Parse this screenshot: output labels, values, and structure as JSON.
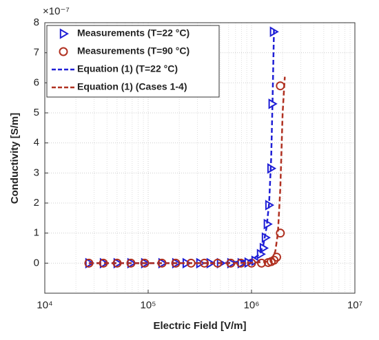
{
  "chart_data": {
    "type": "scatter",
    "y_multiplier": "×10⁻⁷",
    "xlabel": "Electric Field [V/m]",
    "ylabel": "Conductivity [S/m]",
    "xscale": "log",
    "xlim": [
      10000,
      10000000
    ],
    "xticks": [
      {
        "value": 10000,
        "label": "10⁴"
      },
      {
        "value": 100000,
        "label": "10⁵"
      },
      {
        "value": 1000000,
        "label": "10⁶"
      },
      {
        "value": 10000000,
        "label": "10⁷"
      }
    ],
    "ylim": [
      -1,
      8
    ],
    "yticks": [
      0,
      1,
      2,
      3,
      4,
      5,
      6,
      7,
      8
    ],
    "grid": true,
    "legend": "upper left",
    "series": [
      {
        "name": "Measurements (T=22 °C)",
        "style": "triangle",
        "color": "#1f1fd6",
        "x": [
          26700,
          36900,
          50100,
          68100,
          92600,
          136000,
          185000,
          233000,
          316000,
          398000,
          501000,
          631000,
          794000,
          926000,
          1080000,
          1220000,
          1300000,
          1360000,
          1420000,
          1470000,
          1540000,
          1580000,
          1630000
        ],
        "values": [
          0,
          0,
          0,
          0,
          0,
          0,
          0,
          0,
          0,
          0,
          0,
          0,
          0,
          0.02,
          0.08,
          0.3,
          0.5,
          0.85,
          1.3,
          1.93,
          3.15,
          5.3,
          7.7
        ]
      },
      {
        "name": "Measurements (T=90 °C)",
        "style": "circle",
        "color": "#b03020",
        "x": [
          26700,
          36900,
          50100,
          68100,
          92600,
          136000,
          185000,
          260000,
          350000,
          470000,
          630000,
          790000,
          1000000,
          1250000,
          1450000,
          1550000,
          1650000,
          1750000,
          1900000,
          1900000
        ],
        "values": [
          0,
          0,
          0,
          0,
          0,
          0,
          0,
          0,
          0,
          0,
          0,
          0,
          0,
          0,
          0.02,
          0.05,
          0.1,
          0.2,
          1.0,
          5.9
        ]
      },
      {
        "name": "Equation (1) (T=22 °C)",
        "style": "dashed",
        "color": "#1f1fd6",
        "x": [
          26700,
          200000,
          600000,
          1000000,
          1200000,
          1300000,
          1400000,
          1480000,
          1550000,
          1600000,
          1650000
        ],
        "values": [
          0,
          0,
          0.01,
          0.1,
          0.3,
          0.6,
          1.2,
          2,
          3.5,
          5.5,
          7.8
        ]
      },
      {
        "name": "Equation (1) (Cases 1-4)",
        "style": "dashed",
        "color": "#b03020",
        "x": [
          26700,
          600000,
          1000000,
          1400000,
          1600000,
          1700000,
          1800000,
          1900000,
          2000000,
          2100000
        ],
        "values": [
          0,
          0,
          0.01,
          0.05,
          0.15,
          0.4,
          1.0,
          2.5,
          5,
          6.2
        ]
      }
    ]
  }
}
